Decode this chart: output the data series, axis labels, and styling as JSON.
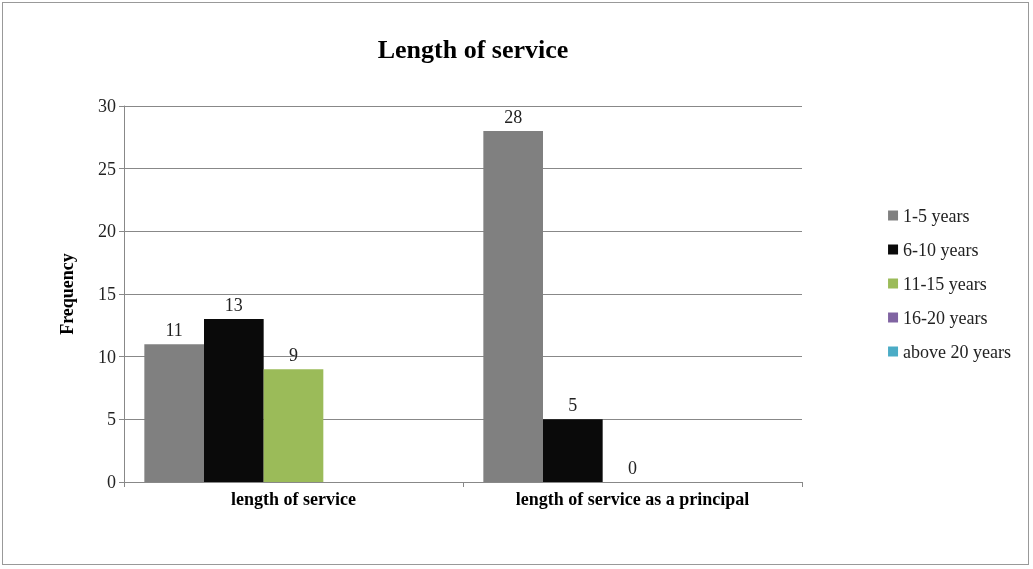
{
  "chart_data": {
    "type": "bar",
    "title": "Length of service",
    "ylabel": "Frequency",
    "categories": [
      "length of service",
      "length of service as a principal"
    ],
    "series": [
      {
        "name": "1-5 years",
        "color": "#808080",
        "values": [
          11,
          28
        ],
        "value_labels": [
          "11",
          "28"
        ]
      },
      {
        "name": "6-10 years",
        "color": "#0a0a0a",
        "values": [
          13,
          5
        ],
        "value_labels": [
          "13",
          "5"
        ]
      },
      {
        "name": "11-15 years",
        "color": "#9bbb59",
        "values": [
          9,
          0
        ],
        "value_labels": [
          "9",
          "0"
        ]
      },
      {
        "name": "16-20 years",
        "color": "#8064a2",
        "values": [
          null,
          null
        ]
      },
      {
        "name": "above 20 years",
        "color": "#4bacc6",
        "values": [
          null,
          null
        ]
      }
    ],
    "ylim": [
      0,
      30
    ],
    "yticks": [
      0,
      5,
      10,
      15,
      20,
      25,
      30
    ],
    "grid": "y",
    "legend": "right"
  }
}
